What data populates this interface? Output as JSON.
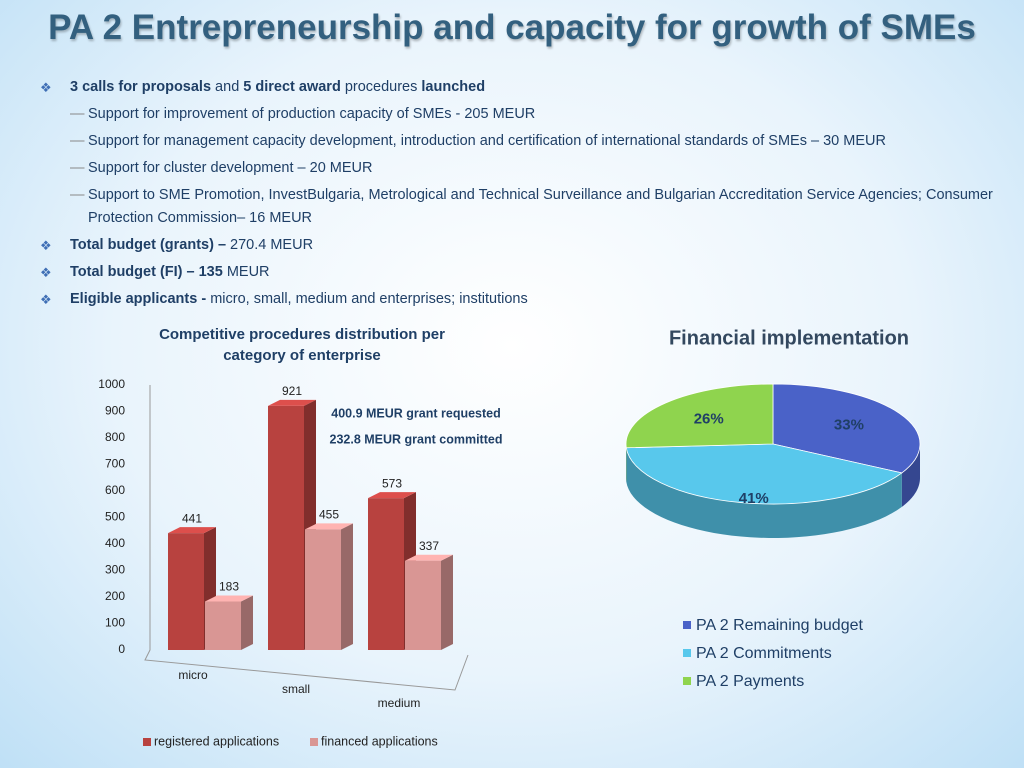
{
  "title": "PA 2 Entrepreneurship and capacity for growth of SMEs",
  "bullets": [
    {
      "level": 1,
      "parts": [
        {
          "text": "3 calls for proposals",
          "bold": true
        },
        {
          "text": " and ",
          "bold": false
        },
        {
          "text": "5 direct award",
          "bold": true
        },
        {
          "text": " procedures ",
          "bold": false
        },
        {
          "text": "launched",
          "bold": true
        }
      ]
    },
    {
      "level": 2,
      "parts": [
        {
          "text": "Support for improvement of production capacity of SMEs  - 205 MEUR",
          "bold": false
        }
      ]
    },
    {
      "level": 2,
      "parts": [
        {
          "text": "Support for management capacity development, introduction and certification of international standards of SMEs – 30 MEUR",
          "bold": false
        }
      ]
    },
    {
      "level": 2,
      "parts": [
        {
          "text": "Support for cluster development – 20 MEUR",
          "bold": false
        }
      ]
    },
    {
      "level": 2,
      "parts": [
        {
          "text": "Support to SME Promotion, InvestBulgaria, Metrological and Technical Surveillance and Bulgarian Accreditation Service Agencies; Consumer Protection Commission– 16 MEUR",
          "bold": false
        }
      ]
    },
    {
      "level": 1,
      "parts": [
        {
          "text": "Total budget (grants) –",
          "bold": true
        },
        {
          "text": " 270.4 MEUR",
          "bold": false
        }
      ]
    },
    {
      "level": 1,
      "parts": [
        {
          "text": "Total budget (FI) – 135",
          "bold": true
        },
        {
          "text": " MEUR",
          "bold": false
        }
      ]
    },
    {
      "level": 1,
      "parts": [
        {
          "text": "Eligible applicants -",
          "bold": true
        },
        {
          "text": " micro, small, medium and enterprises; institutions",
          "bold": false
        }
      ]
    }
  ],
  "chart_data": [
    {
      "type": "bar",
      "title": "Competitive procedures distribution per category of enterprise",
      "categories": [
        "micro",
        "small",
        "medium"
      ],
      "series": [
        {
          "name": "registered applications",
          "color": "#b8423f",
          "values": [
            441,
            921,
            573
          ]
        },
        {
          "name": "financed applications",
          "color": "#d99694",
          "values": [
            183,
            455,
            337
          ]
        }
      ],
      "ylim": [
        0,
        1000
      ],
      "yticks": [
        0,
        100,
        200,
        300,
        400,
        500,
        600,
        700,
        800,
        900,
        1000
      ],
      "annotations": [
        "400.9 MEUR grant requested",
        "232.8 MEUR grant committed"
      ]
    },
    {
      "type": "pie",
      "title": "Financial implementation",
      "categories": [
        "PA 2 Remaining budget",
        "PA 2 Commitments",
        "PA 2 Payments"
      ],
      "values": [
        33,
        41,
        26
      ],
      "value_labels": [
        "33%",
        "41%",
        "26%"
      ],
      "colors": [
        "#4a62c8",
        "#58c8ec",
        "#8fd44e"
      ]
    }
  ]
}
